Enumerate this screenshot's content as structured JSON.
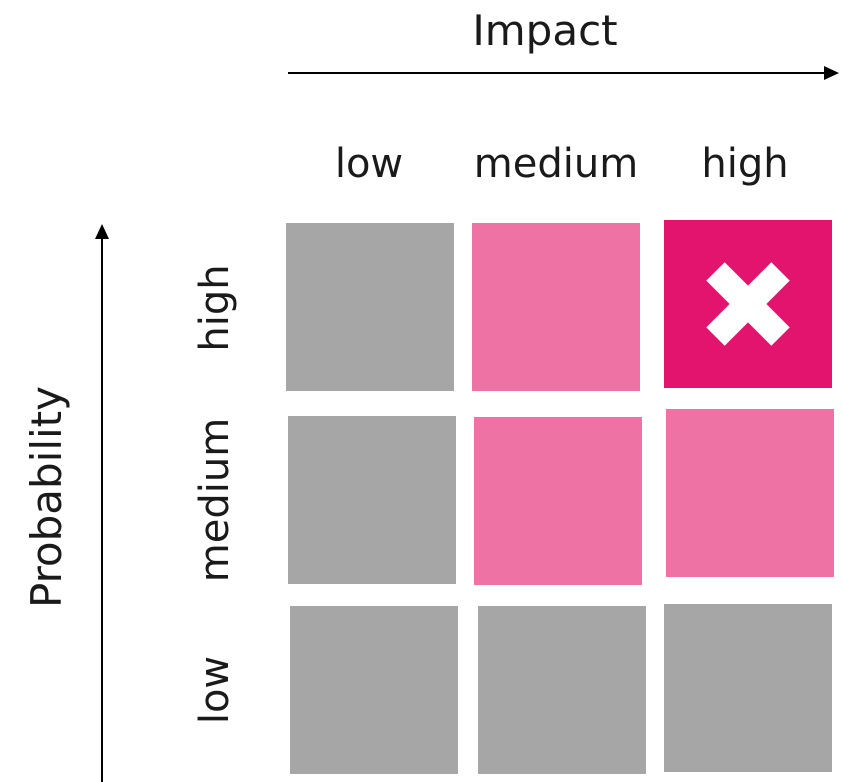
{
  "impact_axis": {
    "title": "Impact",
    "levels": [
      "low",
      "medium",
      "high"
    ]
  },
  "probability_axis": {
    "title": "Probability",
    "levels": [
      "high",
      "medium",
      "low"
    ]
  },
  "matrix": [
    [
      {
        "level": "low",
        "color": "#a6a6a6"
      },
      {
        "level": "medium",
        "color": "#ee72a4"
      },
      {
        "level": "high",
        "color": "#e2146e",
        "marker": "cross-icon"
      }
    ],
    [
      {
        "level": "low",
        "color": "#a6a6a6"
      },
      {
        "level": "medium",
        "color": "#ee72a4"
      },
      {
        "level": "medium",
        "color": "#ee72a4"
      }
    ],
    [
      {
        "level": "low",
        "color": "#a6a6a6"
      },
      {
        "level": "low",
        "color": "#a6a6a6"
      },
      {
        "level": "low",
        "color": "#a6a6a6"
      }
    ]
  ],
  "colors": {
    "low": "#a6a6a6",
    "medium": "#ee72a4",
    "high": "#e2146e"
  }
}
